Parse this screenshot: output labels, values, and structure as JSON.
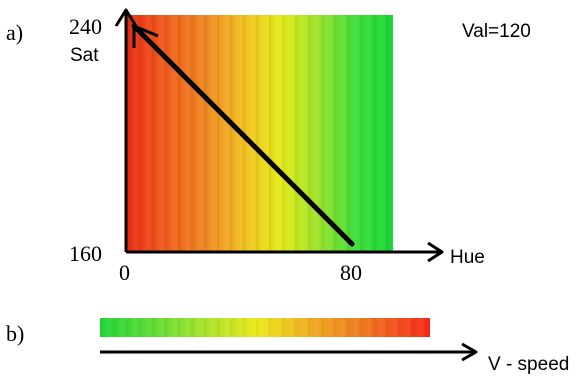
{
  "panel_a": {
    "part_label": "a)",
    "sat_axis_label": "Sat",
    "sat_max": "240",
    "sat_min": "160",
    "hue_axis_label": "Hue",
    "hue_min": "0",
    "hue_max": "80",
    "val_note": "Val=120",
    "hue_gradient_colors": [
      "#e82a12",
      "#f08a22",
      "#f3c422",
      "#e4ec1a",
      "#3fde3a",
      "#18d836"
    ],
    "path": {
      "from": {
        "hue": 80,
        "sat": 160
      },
      "to": {
        "hue": 0,
        "sat": 240
      },
      "color": "#000000"
    }
  },
  "panel_b": {
    "part_label": "b)",
    "speed_axis_label": "V - speed",
    "strip_gradient_colors": [
      "#22d63a",
      "#a8e42c",
      "#ece81c",
      "#f0a822",
      "#f8281a"
    ]
  }
}
